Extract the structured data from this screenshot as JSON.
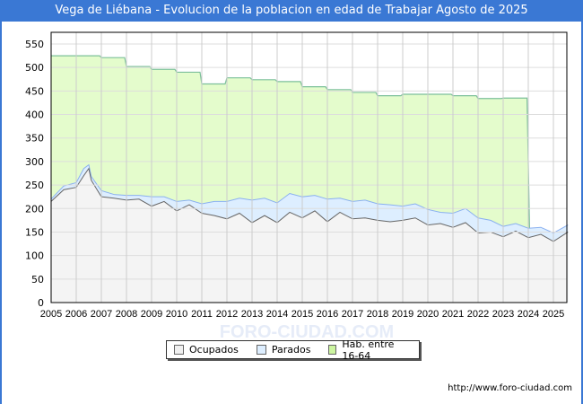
{
  "title": "Vega de Liébana - Evolucion de la poblacion en edad de Trabajar Agosto de 2025",
  "footer": "http://www.foro-ciudad.com",
  "watermark": "FORO-CIUDAD.COM",
  "colors": {
    "ocupados": "#f4f4f4",
    "parados": "#ddeeff",
    "hab": "#e4fccc",
    "hab_line": "#7cc09a",
    "par_line": "#8ab0f0",
    "ocu_line": "#666666",
    "title_bg": "#3a78d4"
  },
  "chart_data": {
    "type": "area",
    "title": "Vega de Liébana - Evolucion de la poblacion en edad de Trabajar Agosto de 2025",
    "xlabel": "",
    "ylabel": "",
    "ylim": [
      0,
      575
    ],
    "xlim": [
      2005,
      2025.58
    ],
    "yticks": [
      "0",
      "50",
      "100",
      "150",
      "200",
      "250",
      "300",
      "350",
      "400",
      "450",
      "500",
      "550"
    ],
    "xticks": [
      "2005",
      "2006",
      "2007",
      "2008",
      "2009",
      "2010",
      "2011",
      "2012",
      "2013",
      "2014",
      "2015",
      "2016",
      "2017",
      "2018",
      "2019",
      "2020",
      "2021",
      "2022",
      "2023",
      "2024",
      "2025"
    ],
    "legend": [
      "Ocupados",
      "Parados",
      "Hab. entre 16-64"
    ],
    "legend_position": "bottom-center",
    "grid": true,
    "x": [
      2005,
      2005.5,
      2006,
      2006.3,
      2006.5,
      2006.6,
      2007,
      2007.5,
      2008,
      2008.5,
      2009,
      2009.5,
      2010,
      2010.5,
      2011,
      2011.5,
      2012,
      2012.5,
      2013,
      2013.5,
      2014,
      2014.5,
      2015,
      2015.5,
      2016,
      2016.5,
      2017,
      2017.5,
      2018,
      2018.5,
      2019,
      2019.5,
      2020,
      2020.5,
      2021,
      2021.5,
      2022,
      2022.5,
      2023,
      2023.5,
      2024,
      2024.5,
      2025,
      2025.58
    ],
    "series": [
      {
        "name": "Ocupados",
        "values": [
          215,
          240,
          245,
          270,
          285,
          260,
          225,
          222,
          218,
          220,
          205,
          215,
          195,
          208,
          190,
          185,
          178,
          190,
          170,
          185,
          170,
          192,
          180,
          195,
          172,
          192,
          178,
          180,
          175,
          172,
          175,
          180,
          165,
          168,
          160,
          170,
          148,
          150,
          140,
          152,
          138,
          145,
          130,
          150
        ]
      },
      {
        "name": "Parados",
        "values": [
          5,
          8,
          10,
          15,
          8,
          8,
          13,
          8,
          10,
          8,
          20,
          10,
          20,
          10,
          20,
          30,
          37,
          32,
          48,
          37,
          42,
          40,
          45,
          33,
          48,
          30,
          37,
          38,
          35,
          36,
          30,
          30,
          33,
          24,
          30,
          30,
          32,
          25,
          22,
          16,
          20,
          15,
          18,
          15
        ]
      },
      {
        "name": "Hab. entre 16-64",
        "x": [
          2005,
          2006,
          2007,
          2008,
          2009,
          2010,
          2011,
          2012,
          2013,
          2014,
          2015,
          2016,
          2017,
          2018,
          2019,
          2020,
          2021,
          2022,
          2023,
          2023.95
        ],
        "values": [
          525,
          525,
          521,
          502,
          496,
          490,
          465,
          478,
          474,
          470,
          459,
          453,
          447,
          440,
          443,
          443,
          440,
          434,
          435,
          435
        ]
      }
    ]
  }
}
